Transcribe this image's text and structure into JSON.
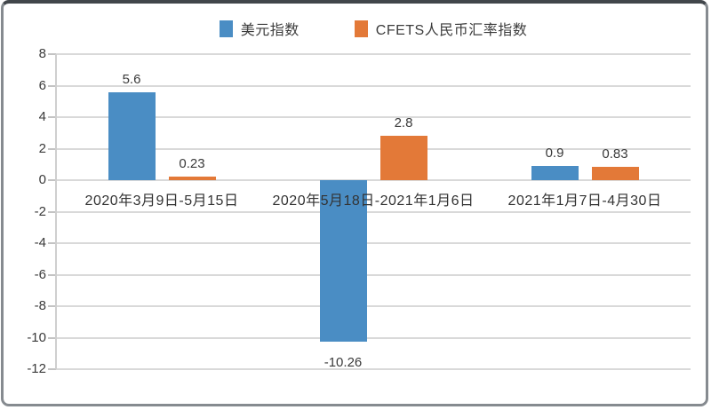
{
  "chart_data": {
    "type": "bar",
    "title": "",
    "xlabel": "",
    "ylabel": "",
    "categories": [
      "2020年3月9日-5月15日",
      "2020年5月18日-2021年1月6日",
      "2021年1月7日-4月30日"
    ],
    "series": [
      {
        "name": "美元指数",
        "color": "#4A8DC4",
        "values": [
          5.6,
          -10.26,
          0.9
        ],
        "value_labels": [
          "5.6",
          "-10.26",
          "0.9"
        ]
      },
      {
        "name": "CFETS人民币汇率指数",
        "color": "#E37938",
        "values": [
          0.23,
          2.8,
          0.83
        ],
        "value_labels": [
          "0.23",
          "2.8",
          "0.83"
        ]
      }
    ],
    "ylim": [
      -12,
      8
    ],
    "yticks": [
      8,
      6,
      4,
      2,
      0,
      -2,
      -4,
      -6,
      -8,
      -10,
      -12
    ],
    "grid": true,
    "legend_position": "top",
    "colors": {
      "gridline": "#d9d9d9",
      "axis_text": "#3a3a3a",
      "frame_border": "#868b90",
      "frame_top_rule": "#41464b",
      "background": "#ffffff"
    }
  }
}
